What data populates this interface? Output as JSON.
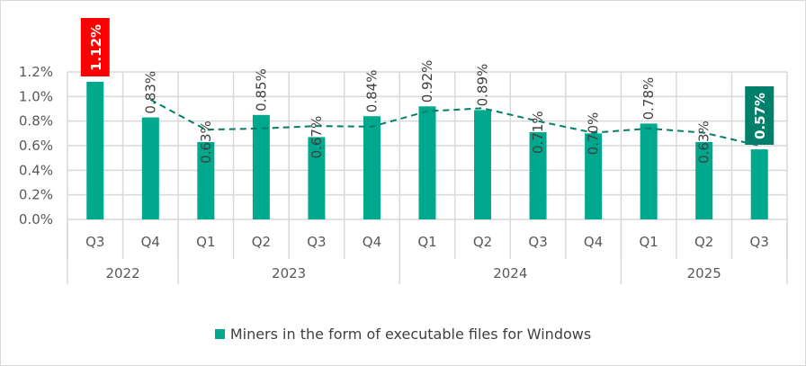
{
  "chart_data": {
    "type": "bar",
    "title": "",
    "categories": [
      "Q3",
      "Q4",
      "Q1",
      "Q2",
      "Q3",
      "Q4",
      "Q1",
      "Q2",
      "Q3",
      "Q4",
      "Q1",
      "Q2",
      "Q3"
    ],
    "groups": [
      {
        "label": "2022",
        "count": 2
      },
      {
        "label": "2023",
        "count": 4
      },
      {
        "label": "2024",
        "count": 4
      },
      {
        "label": "2025",
        "count": 3
      }
    ],
    "series": [
      {
        "name": "Miners in the form of executable files for Windows",
        "values": [
          1.12,
          0.83,
          0.63,
          0.85,
          0.67,
          0.84,
          0.92,
          0.89,
          0.71,
          0.7,
          0.78,
          0.63,
          0.57
        ],
        "color": "#00a88e"
      }
    ],
    "data_labels": [
      "1.12%",
      "0.83%",
      "0.63%",
      "0.85%",
      "0.67%",
      "0.84%",
      "0.92%",
      "0.89%",
      "0.71%",
      "0.70%",
      "0.78%",
      "0.63%",
      "0.57%"
    ],
    "highlight": {
      "max_index": 0,
      "max_color": "#ff0000",
      "last_index": 12,
      "last_color": "#007f6a"
    },
    "trendline": {
      "type": "moving-average",
      "period": 2,
      "color": "#007f6a",
      "style": "dashed"
    },
    "ylim": [
      0,
      1.2
    ],
    "yticks": [
      "0.0%",
      "0.2%",
      "0.4%",
      "0.6%",
      "0.8%",
      "1.0%",
      "1.2%"
    ],
    "ytick_values": [
      0,
      0.2,
      0.4,
      0.6,
      0.8,
      1.0,
      1.2
    ],
    "grid": true,
    "legend_position": "bottom",
    "xlabel": "",
    "ylabel": ""
  }
}
